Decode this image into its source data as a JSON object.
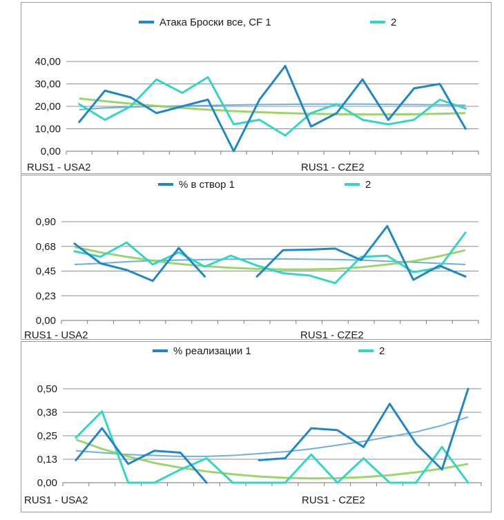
{
  "colors": {
    "series1": "#1f86c8",
    "series2": "#33d6c2",
    "trend1": "#5aa6e0",
    "trend2": "#8fd15a",
    "grid": "#8c8c8c",
    "axis": "#7a7a7a",
    "text": "#1a1a1a"
  },
  "chart_data": [
    {
      "type": "line",
      "title": "",
      "legend": [
        "Атака Броски все, CF 1",
        "2"
      ],
      "y_ticks": [
        "0,00",
        "10,00",
        "20,00",
        "30,00",
        "40,00"
      ],
      "ylim": [
        0,
        40
      ],
      "x_labels": [
        {
          "index": 0,
          "text": "RUS1 - USA2"
        },
        {
          "index": 10,
          "text": "RUS1 - CZE2"
        }
      ],
      "point_count": 16,
      "series": [
        {
          "name": "Атака Броски все, CF 1",
          "values": [
            13,
            27,
            24,
            17,
            20,
            23,
            0,
            23,
            38,
            11,
            17,
            32,
            14,
            28,
            30,
            10
          ]
        },
        {
          "name": "2",
          "values": [
            21,
            14,
            20,
            32,
            26,
            33,
            12,
            14,
            7,
            17,
            21,
            14,
            12,
            14,
            23,
            19
          ]
        }
      ],
      "trendlines": [
        {
          "name": "trend 1",
          "values": [
            18.5,
            19.3,
            19.7,
            20.0,
            20.2,
            20.4,
            20.6,
            20.8,
            20.9,
            21.0,
            21.0,
            21.0,
            20.9,
            20.8,
            20.7,
            20.5
          ]
        },
        {
          "name": "trend 2",
          "values": [
            23.5,
            22.3,
            21.2,
            20.2,
            19.3,
            18.5,
            17.9,
            17.4,
            17.0,
            16.7,
            16.5,
            16.4,
            16.4,
            16.5,
            16.7,
            17.0
          ]
        }
      ]
    },
    {
      "type": "line",
      "title": "",
      "legend": [
        "% в створ 1",
        "2"
      ],
      "y_ticks": [
        "0,00",
        "0,23",
        "0,45",
        "0,68",
        "0,90"
      ],
      "ylim": [
        0,
        0.9
      ],
      "x_labels": [
        {
          "index": 0,
          "text": "RUS1 - USA2"
        },
        {
          "index": 10,
          "text": "RUS1 - CZE2"
        }
      ],
      "point_count": 16,
      "series": [
        {
          "name": "% в створ 1",
          "values": [
            0.7,
            0.52,
            0.46,
            0.36,
            0.66,
            0.4,
            null,
            0.4,
            0.64,
            0.645,
            0.655,
            0.55,
            0.86,
            0.37,
            0.5,
            0.4
          ]
        },
        {
          "name": "2",
          "values": [
            0.63,
            0.58,
            0.71,
            0.51,
            0.62,
            0.49,
            0.59,
            0.5,
            0.43,
            0.41,
            0.34,
            0.58,
            0.59,
            0.44,
            0.48,
            0.8
          ]
        }
      ],
      "trendlines": [
        {
          "name": "trend 1",
          "values": [
            0.51,
            0.52,
            0.535,
            0.545,
            0.55,
            0.555,
            0.558,
            0.56,
            0.56,
            0.558,
            0.555,
            0.55,
            0.54,
            0.53,
            0.52,
            0.51
          ]
        },
        {
          "name": "trend 2",
          "values": [
            0.67,
            0.62,
            0.58,
            0.545,
            0.515,
            0.495,
            0.48,
            0.47,
            0.465,
            0.465,
            0.47,
            0.485,
            0.51,
            0.54,
            0.585,
            0.64
          ]
        }
      ]
    },
    {
      "type": "line",
      "title": "",
      "legend": [
        "% реализации 1",
        "2"
      ],
      "y_ticks": [
        "0,00",
        "0,13",
        "0,25",
        "0,38",
        "0,50"
      ],
      "ylim": [
        0,
        0.5
      ],
      "x_labels": [
        {
          "index": 0,
          "text": "RUS1 - USA2"
        },
        {
          "index": 10,
          "text": "RUS1 - CZE2"
        }
      ],
      "point_count": 16,
      "series": [
        {
          "name": "% реализации 1",
          "values": [
            0.12,
            0.29,
            0.1,
            0.17,
            0.16,
            0.0,
            null,
            0.12,
            0.13,
            0.29,
            0.28,
            0.19,
            0.42,
            0.21,
            0.07,
            0.5
          ]
        },
        {
          "name": "2",
          "values": [
            0.24,
            0.38,
            0.0,
            0.0,
            0.07,
            0.13,
            0.0,
            0.0,
            0.0,
            0.15,
            0.0,
            0.13,
            0.0,
            0.0,
            0.19,
            0.0
          ]
        }
      ],
      "trendlines": [
        {
          "name": "trend 1",
          "values": [
            0.17,
            0.16,
            0.15,
            0.145,
            0.14,
            0.14,
            0.145,
            0.155,
            0.165,
            0.18,
            0.2,
            0.22,
            0.245,
            0.27,
            0.305,
            0.35
          ]
        },
        {
          "name": "trend 2",
          "values": [
            0.23,
            0.18,
            0.14,
            0.105,
            0.08,
            0.06,
            0.045,
            0.033,
            0.026,
            0.023,
            0.024,
            0.03,
            0.04,
            0.055,
            0.075,
            0.1
          ]
        }
      ]
    }
  ]
}
